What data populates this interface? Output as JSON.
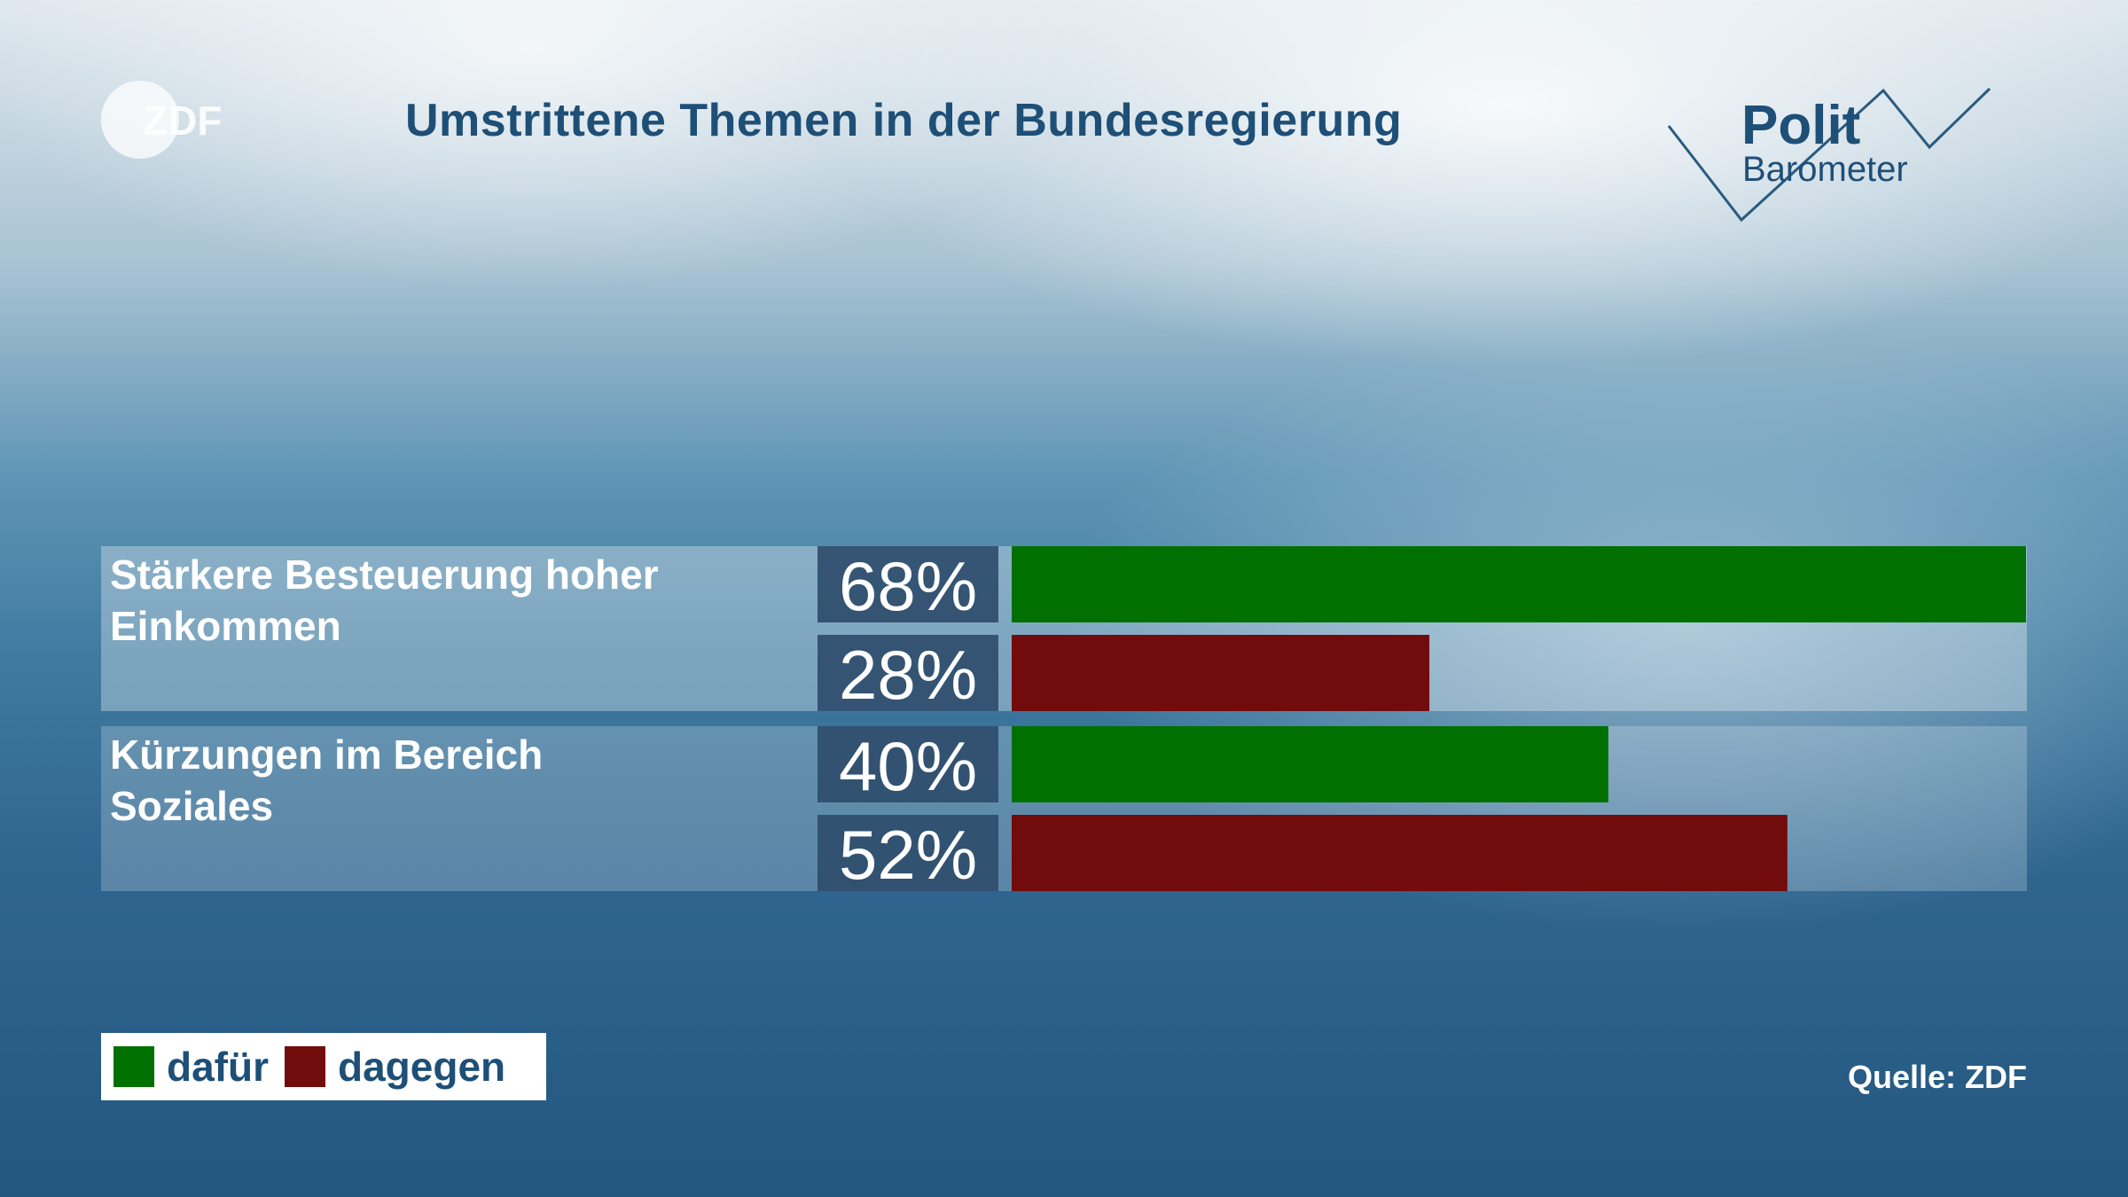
{
  "header": {
    "title": "Umstrittene Themen in der Bundesregierung",
    "broadcaster_logo": {
      "text": "ZDF",
      "icon": "zdf-logo"
    },
    "program_logo": {
      "line1": "Polit",
      "line2": "Barometer",
      "icon": "politbarometer-logo"
    }
  },
  "chart_data": {
    "type": "bar",
    "orientation": "horizontal",
    "title": "Umstrittene Themen in der Bundesregierung",
    "xlim": [
      0,
      68
    ],
    "categories": [
      "Stärkere Besteuerung hoher Einkommen",
      "Kürzungen im Bereich Soziales"
    ],
    "series": [
      {
        "name": "dafür",
        "color": "#007000",
        "values": [
          68,
          40
        ],
        "labels": [
          "68%",
          "40%"
        ]
      },
      {
        "name": "dagegen",
        "color": "#720b0b",
        "values": [
          28,
          52
        ],
        "labels": [
          "28%",
          "52%"
        ]
      }
    ],
    "unit": "%",
    "legend_position": "bottom-left",
    "grid": false
  },
  "legend": {
    "items": [
      {
        "label": "dafür",
        "color": "#007000"
      },
      {
        "label": "dagegen",
        "color": "#720b0b"
      }
    ]
  },
  "footer": {
    "source": "Quelle: ZDF"
  }
}
